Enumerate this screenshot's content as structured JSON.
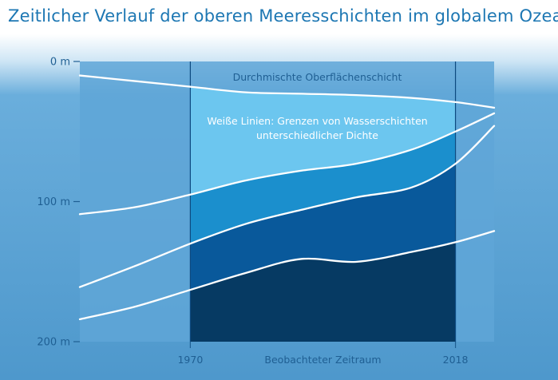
{
  "title": "Zeitlicher Verlauf der oberen Meeresschichten im globalem Ozean",
  "chart_data": {
    "type": "area",
    "title": "Zeitlicher Verlauf der oberen Meeresschichten im globalem Ozean",
    "xlabel": "Beobachteter Zeitraum",
    "ylabel": "",
    "x_ticks": [
      "1970",
      "2018"
    ],
    "y_ticks": [
      "0 m",
      "100 m",
      "200 m"
    ],
    "ylim": [
      0,
      200
    ],
    "y_inverted": true,
    "highlight_period": [
      "1970",
      "2018"
    ],
    "annotations": {
      "top_layer": "Durchmischte Oberflächenschicht",
      "legend_line1": "Weiße Linien: Grenzen von Wasserschichten",
      "legend_line2": "unterschiedlicher Dichte"
    },
    "x": [
      1950,
      1960,
      1970,
      1980,
      1990,
      2000,
      2010,
      2018,
      2025
    ],
    "boundaries_depth_m": [
      [
        10,
        14,
        18,
        22,
        23,
        24,
        26,
        29,
        33
      ],
      [
        109,
        104,
        95,
        85,
        78,
        73,
        63,
        50,
        37
      ],
      [
        161,
        146,
        130,
        116,
        106,
        97,
        90,
        73,
        46
      ],
      [
        184,
        175,
        163,
        151,
        141,
        143,
        136,
        129,
        121
      ]
    ],
    "colors": {
      "sky_top": "#ffffff",
      "sea": "#6aaedc",
      "plot_side": "#5fa6d7",
      "layer1": "#6cc6ef",
      "layer2": "#1b8fcd",
      "layer3": "#09599b",
      "layer4": "#063a63",
      "title": "#1d77b3",
      "axis_text": "#1f5f93",
      "boundary_line": "#ffffff"
    }
  }
}
